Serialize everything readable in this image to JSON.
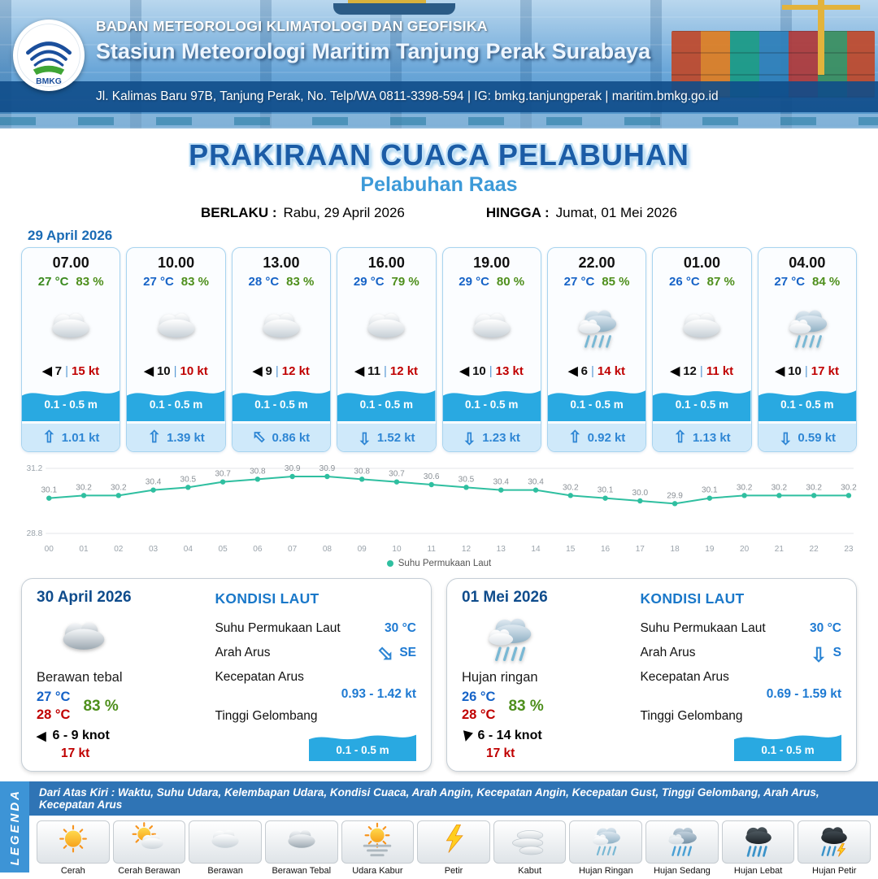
{
  "colors": {
    "primary_blue": "#1b5ca6",
    "subtitle_blue": "#3d9ad8",
    "wave_blue": "#29a9e1",
    "humidity_green": "#4e8f1c",
    "gust_red": "#c00000",
    "current_blue": "#2e86d4",
    "chart_line": "#2fbfa0"
  },
  "icons": {
    "wind_arrow": "◀",
    "current_arrow": "⇧",
    "divider": "|"
  },
  "header": {
    "logo": "BMKG",
    "agency": "BADAN METEOROLOGI KLIMATOLOGI DAN GEOFISIKA",
    "station": "Stasiun Meteorologi Maritim Tanjung Perak Surabaya",
    "address": "Jl. Kalimas Baru 97B, Tanjung Perak, No. Telp/WA 0811-3398-594 | IG: bmkg.tanjungperak | maritim.bmkg.go.id"
  },
  "title": {
    "main": "PRAKIRAAN CUACA PELABUHAN",
    "subtitle": "Pelabuhan Raas",
    "valid_from_label": "BERLAKU :",
    "valid_from": "Rabu, 29 April 2026",
    "valid_to_label": "HINGGA :",
    "valid_to": "Jumat, 01 Mei 2026"
  },
  "forecast": {
    "date": "29 April 2026",
    "cards": [
      {
        "time": "07.00",
        "temp": "27 °C",
        "temp_color": "#3a8a1f",
        "humidity": "83 %",
        "icon": "cloud",
        "wind": "7",
        "gust": "15 kt",
        "wave": "0.1 - 0.5 m",
        "current": "1.01 kt",
        "current_deg": 0
      },
      {
        "time": "10.00",
        "temp": "27 °C",
        "temp_color": "#1663c7",
        "humidity": "83 %",
        "icon": "cloud",
        "wind": "10",
        "gust": "10 kt",
        "wave": "0.1 - 0.5 m",
        "current": "1.39 kt",
        "current_deg": 0
      },
      {
        "time": "13.00",
        "temp": "28 °C",
        "temp_color": "#1663c7",
        "humidity": "83 %",
        "icon": "cloud",
        "wind": "9",
        "gust": "12 kt",
        "wave": "0.1 - 0.5 m",
        "current": "0.86 kt",
        "current_deg": -45
      },
      {
        "time": "16.00",
        "temp": "29 °C",
        "temp_color": "#1663c7",
        "humidity": "79 %",
        "icon": "cloud",
        "wind": "11",
        "gust": "12 kt",
        "wave": "0.1 - 0.5 m",
        "current": "1.52 kt",
        "current_deg": 180
      },
      {
        "time": "19.00",
        "temp": "29 °C",
        "temp_color": "#1663c7",
        "humidity": "80 %",
        "icon": "cloud",
        "wind": "10",
        "gust": "13 kt",
        "wave": "0.1 - 0.5 m",
        "current": "1.23 kt",
        "current_deg": 180
      },
      {
        "time": "22.00",
        "temp": "27 °C",
        "temp_color": "#1663c7",
        "humidity": "85 %",
        "icon": "rain",
        "wind": "6",
        "gust": "14 kt",
        "wave": "0.1 - 0.5 m",
        "current": "0.92 kt",
        "current_deg": 0
      },
      {
        "time": "01.00",
        "temp": "26 °C",
        "temp_color": "#1663c7",
        "humidity": "87 %",
        "icon": "cloud",
        "wind": "12",
        "gust": "11 kt",
        "wave": "0.1 - 0.5 m",
        "current": "1.13 kt",
        "current_deg": 0
      },
      {
        "time": "04.00",
        "temp": "27 °C",
        "temp_color": "#1663c7",
        "humidity": "84 %",
        "icon": "rain",
        "wind": "10",
        "gust": "17 kt",
        "wave": "0.1 - 0.5 m",
        "current": "0.59 kt",
        "current_deg": 180
      }
    ]
  },
  "chart_data": {
    "type": "line",
    "title": "",
    "x": [
      "00",
      "01",
      "02",
      "03",
      "04",
      "05",
      "06",
      "07",
      "08",
      "09",
      "10",
      "11",
      "12",
      "13",
      "14",
      "15",
      "16",
      "17",
      "18",
      "19",
      "20",
      "21",
      "22",
      "23"
    ],
    "series": [
      {
        "name": "Suhu Permukaan Laut",
        "values": [
          30.1,
          30.2,
          30.2,
          30.4,
          30.5,
          30.7,
          30.8,
          30.9,
          30.9,
          30.8,
          30.7,
          30.6,
          30.5,
          30.4,
          30.4,
          30.2,
          30.1,
          30.0,
          29.9,
          30.1,
          30.2,
          30.2,
          30.2,
          30.2
        ]
      }
    ],
    "ylim": [
      28.8,
      31.2
    ],
    "yticks": [
      31.2,
      28.8
    ],
    "grid": true,
    "legend_position": "bottom",
    "line_color": "#2fbfa0"
  },
  "daily_labels": {
    "sea_title": "KONDISI LAUT",
    "sst": "Suhu Permukaan Laut",
    "current_dir": "Arah Arus",
    "current_speed": "Kecepatan Arus",
    "wave": "Tinggi Gelombang"
  },
  "daily": [
    {
      "date": "30 April 2026",
      "icon": "cloud-dark",
      "condition": "Berawan tebal",
      "temp_min": "27 °C",
      "temp_max": "28 °C",
      "humidity": "83 %",
      "wind": "6 - 9 knot",
      "wind_deg": 0,
      "gust": "17 kt",
      "sst": "30 °C",
      "current_dir": "SE",
      "current_deg": 135,
      "current_speed": "0.93 - 1.42 kt",
      "wave": "0.1 - 0.5 m"
    },
    {
      "date": "01 Mei 2026",
      "icon": "rain",
      "condition": "Hujan ringan",
      "temp_min": "26 °C",
      "temp_max": "28 °C",
      "humidity": "83 %",
      "wind": "6 - 14 knot",
      "wind_deg": -75,
      "gust": "17 kt",
      "sst": "30 °C",
      "current_dir": "S",
      "current_deg": 180,
      "current_speed": "0.69 - 1.59 kt",
      "wave": "0.1 - 0.5 m"
    }
  ],
  "legend": {
    "vertical_label": "LEGENDA",
    "description": "Dari Atas Kiri : Waktu, Suhu Udara, Kelembapan Udara, Kondisi Cuaca, Arah Angin, Kecepatan Angin, Kecepatan Gust, Tinggi Gelombang, Arah Arus, Kecepatan Arus",
    "items": [
      {
        "label": "Cerah",
        "icon": "sun"
      },
      {
        "label": "Cerah Berawan",
        "icon": "sun-cloud"
      },
      {
        "label": "Berawan",
        "icon": "cloud"
      },
      {
        "label": "Berawan Tebal",
        "icon": "cloud-dark"
      },
      {
        "label": "Udara Kabur",
        "icon": "haze"
      },
      {
        "label": "Petir",
        "icon": "lightning"
      },
      {
        "label": "Kabut",
        "icon": "fog"
      },
      {
        "label": "Hujan Ringan",
        "icon": "rain"
      },
      {
        "label": "Hujan Sedang",
        "icon": "rain-medium"
      },
      {
        "label": "Hujan Lebat",
        "icon": "rain-heavy"
      },
      {
        "label": "Hujan Petir",
        "icon": "rain-thunder"
      }
    ]
  }
}
